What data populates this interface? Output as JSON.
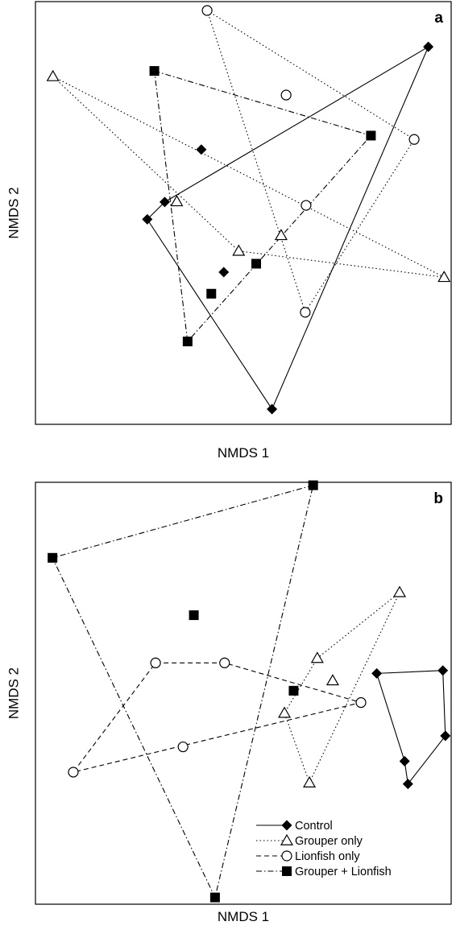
{
  "chart_data": [
    {
      "type": "scatter",
      "panel_label": "a",
      "xlabel": "NMDS 1",
      "ylabel": "NMDS 2",
      "xlim": [
        0,
        100
      ],
      "ylim": [
        0,
        100
      ],
      "grid": false,
      "series": [
        {
          "name": "Control",
          "marker": "diamond",
          "line": "solid",
          "points": [
            [
              26.9,
              48.5
            ],
            [
              31.1,
              52.6
            ],
            [
              39.9,
              65.0
            ],
            [
              94.5,
              89.3
            ],
            [
              56.9,
              3.6
            ],
            [
              45.3,
              36.0
            ]
          ],
          "hull": [
            0,
            1,
            3,
            4
          ]
        },
        {
          "name": "Grouper only",
          "marker": "triangle",
          "line": "dotted",
          "points": [
            [
              4.2,
              82.3
            ],
            [
              34.0,
              52.7
            ],
            [
              48.9,
              41.0
            ],
            [
              59.1,
              44.7
            ],
            [
              98.3,
              34.8
            ]
          ],
          "hull": [
            0,
            4,
            2
          ]
        },
        {
          "name": "Lionfish only",
          "marker": "circle",
          "line": "dotted",
          "points": [
            [
              41.3,
              97.9
            ],
            [
              60.3,
              77.9
            ],
            [
              91.1,
              67.4
            ],
            [
              65.1,
              51.8
            ],
            [
              64.9,
              26.5
            ]
          ],
          "hull": [
            0,
            2,
            4
          ]
        },
        {
          "name": "Grouper + Lionfish",
          "marker": "square",
          "line": "dashdot",
          "points": [
            [
              28.6,
              83.6
            ],
            [
              80.7,
              68.3
            ],
            [
              36.6,
              19.6
            ],
            [
              42.3,
              30.9
            ],
            [
              53.1,
              38.0
            ]
          ],
          "hull": [
            0,
            1,
            2
          ]
        }
      ]
    },
    {
      "type": "scatter",
      "panel_label": "b",
      "xlabel": "NMDS 1",
      "ylabel": "NMDS 2",
      "xlim": [
        0,
        100
      ],
      "ylim": [
        0,
        100
      ],
      "grid": false,
      "legend_position": "bottom-right",
      "series": [
        {
          "name": "Control",
          "marker": "diamond",
          "line": "solid",
          "points": [
            [
              82.1,
              54.7
            ],
            [
              98.0,
              55.4
            ],
            [
              98.6,
              39.9
            ],
            [
              88.8,
              33.9
            ],
            [
              89.6,
              28.5
            ]
          ],
          "hull": [
            0,
            1,
            2,
            4,
            3
          ]
        },
        {
          "name": "Grouper only",
          "marker": "triangle",
          "line": "dotted",
          "points": [
            [
              87.6,
              73.9
            ],
            [
              67.8,
              58.3
            ],
            [
              71.5,
              53.0
            ],
            [
              59.9,
              45.3
            ],
            [
              65.9,
              28.8
            ]
          ],
          "hull": [
            0,
            4,
            3,
            1
          ]
        },
        {
          "name": "Lionfish only",
          "marker": "circle",
          "line": "dashed",
          "points": [
            [
              28.9,
              57.2
            ],
            [
              45.5,
              57.2
            ],
            [
              78.3,
              47.8
            ],
            [
              35.5,
              37.3
            ],
            [
              9.1,
              31.3
            ]
          ],
          "hull": [
            0,
            1,
            2,
            4
          ]
        },
        {
          "name": "Grouper + Lionfish",
          "marker": "square",
          "line": "dashdot",
          "points": [
            [
              66.8,
              99.3
            ],
            [
              4.1,
              82.1
            ],
            [
              38.1,
              68.5
            ],
            [
              62.1,
              50.6
            ],
            [
              43.2,
              1.6
            ]
          ],
          "hull": [
            0,
            1,
            4
          ]
        }
      ]
    }
  ]
}
